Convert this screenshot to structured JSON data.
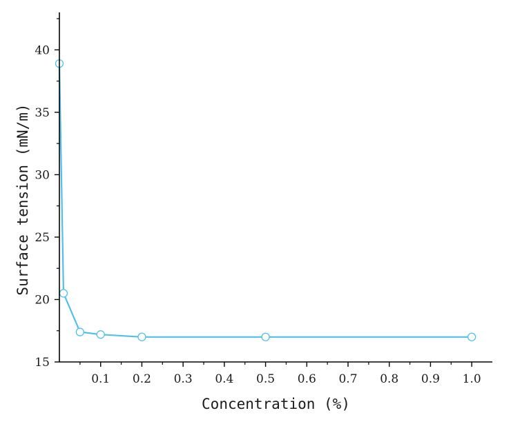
{
  "chart_data": {
    "type": "line",
    "xlabel": "Concentration (%)",
    "ylabel": "Surface tension (mN/m)",
    "xlim": [
      0,
      1.05
    ],
    "ylim": [
      15,
      43
    ],
    "x_ticks": [
      0.1,
      0.2,
      0.3,
      0.4,
      0.5,
      0.6,
      0.7,
      0.8,
      0.9,
      1.0
    ],
    "x_tick_labels": [
      "0.1",
      "0.2",
      "0.3",
      "0.4",
      "0.5",
      "0.6",
      "0.7",
      "0.8",
      "0.9",
      "1.0"
    ],
    "y_ticks": [
      15,
      20,
      25,
      30,
      35,
      40
    ],
    "y_tick_labels": [
      "15",
      "20",
      "25",
      "30",
      "35",
      "40"
    ],
    "grid": false,
    "legend": "none",
    "series": [
      {
        "color": "#4fc0ec",
        "marker": "open-circle",
        "x": [
          0,
          0.01,
          0.05,
          0.1,
          0.2,
          0.5,
          1.0
        ],
        "y": [
          38.9,
          20.5,
          17.4,
          17.2,
          17.0,
          17.0,
          17.0
        ]
      }
    ]
  }
}
